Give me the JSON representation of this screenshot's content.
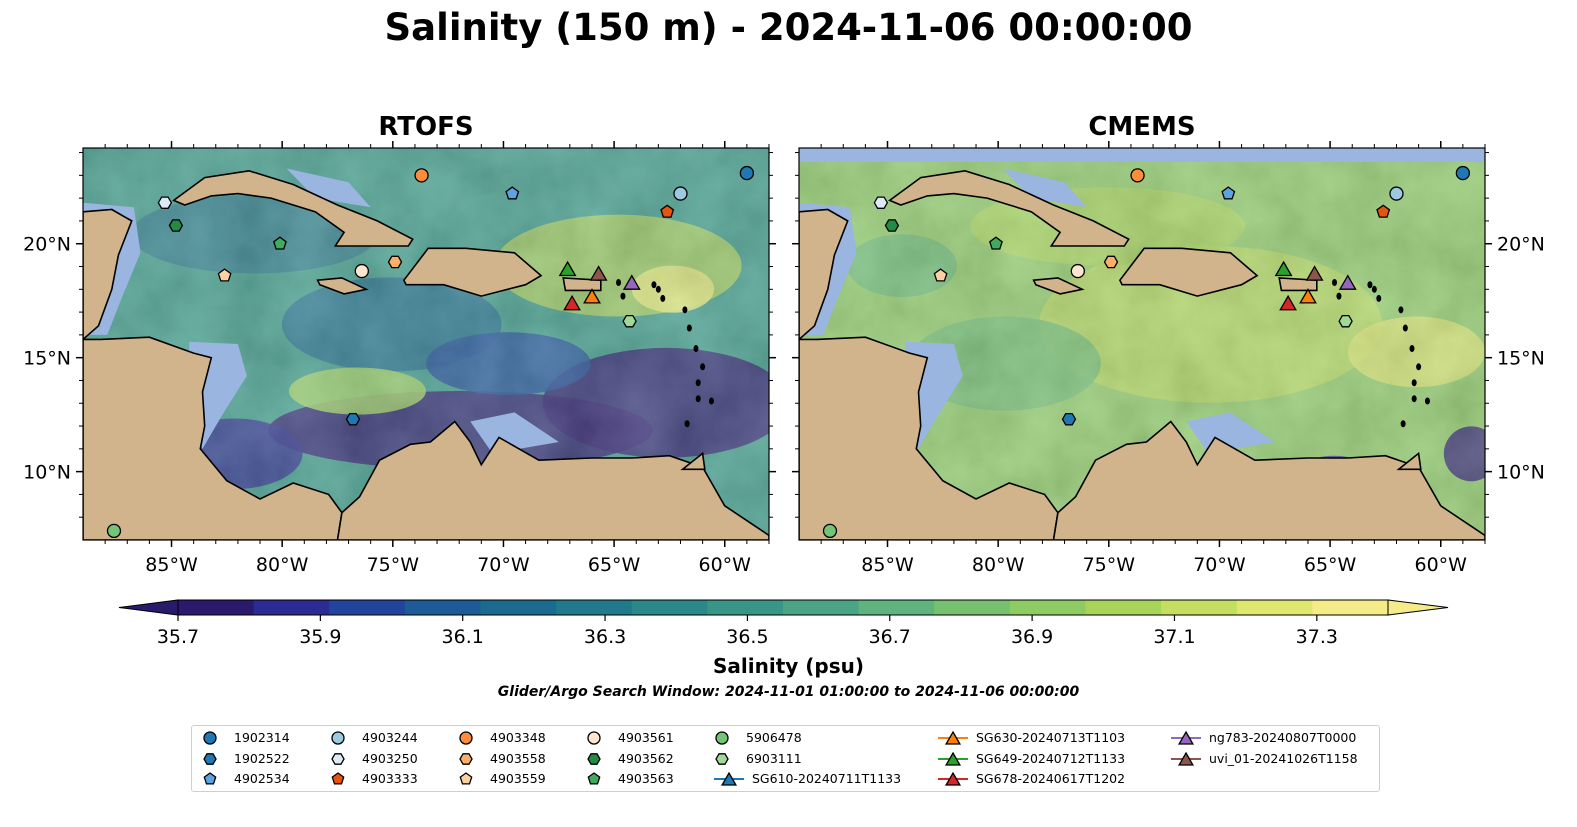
{
  "title": "Salinity (150 m) - 2024-11-06 00:00:00",
  "panels": [
    {
      "title": "RTOFS"
    },
    {
      "title": "CMEMS"
    }
  ],
  "axes": {
    "lon_ticks": [
      "85°W",
      "80°W",
      "75°W",
      "70°W",
      "65°W",
      "60°W"
    ],
    "lat_ticks": [
      "20°N",
      "15°N",
      "10°N"
    ]
  },
  "colorbar": {
    "label": "Salinity (psu)",
    "ticks": [
      "35.7",
      "35.9",
      "36.1",
      "36.3",
      "36.5",
      "36.7",
      "36.9",
      "37.1",
      "37.3"
    ],
    "range": [
      35.7,
      37.4
    ],
    "colors": [
      "#2a1a6b",
      "#2c2a94",
      "#22449e",
      "#1c5a98",
      "#1b6a8f",
      "#1f7a8c",
      "#2a878a",
      "#389688",
      "#4aa585",
      "#5fb47e",
      "#76c16f",
      "#8ecb62",
      "#a7d55a",
      "#c3de62",
      "#dfe76f",
      "#f5eb88"
    ]
  },
  "search_window": "Glider/Argo Search Window: 2024-11-01 01:00:00 to 2024-11-06 00:00:00",
  "legend": {
    "columns": [
      [
        {
          "label": "1902314",
          "marker": "circle",
          "color": "#1f77b4"
        },
        {
          "label": "1902522",
          "marker": "hexagon",
          "color": "#1f77b4"
        },
        {
          "label": "4902534",
          "marker": "pentagon",
          "color": "#5da3e0"
        }
      ],
      [
        {
          "label": "4903244",
          "marker": "circle",
          "color": "#9ecae1"
        },
        {
          "label": "4903250",
          "marker": "hexagon",
          "color": "#deebf7"
        },
        {
          "label": "4903333",
          "marker": "pentagon",
          "color": "#e6550d"
        }
      ],
      [
        {
          "label": "4903348",
          "marker": "circle",
          "color": "#fd8d3c"
        },
        {
          "label": "4903558",
          "marker": "hexagon",
          "color": "#fdae6b"
        },
        {
          "label": "4903559",
          "marker": "pentagon",
          "color": "#fdd0a2"
        }
      ],
      [
        {
          "label": "4903561",
          "marker": "circle",
          "color": "#fde5cf"
        },
        {
          "label": "4903562",
          "marker": "hexagon",
          "color": "#238b45"
        },
        {
          "label": "4903563",
          "marker": "pentagon",
          "color": "#41ab5d"
        }
      ],
      [
        {
          "label": "5906478",
          "marker": "circle",
          "color": "#74c476"
        },
        {
          "label": "6903111",
          "marker": "hexagon",
          "color": "#a1d99b"
        },
        {
          "label": "SG610-20240711T1133",
          "marker": "triangle",
          "color": "#1f77b4"
        }
      ],
      [
        {
          "label": "SG630-20240713T1103",
          "marker": "triangle",
          "color": "#ff7f0e"
        },
        {
          "label": "SG649-20240712T1133",
          "marker": "triangle",
          "color": "#2ca02c"
        },
        {
          "label": "SG678-20240617T1202",
          "marker": "triangle",
          "color": "#d62728"
        }
      ],
      [
        {
          "label": "ng783-20240807T0000",
          "marker": "triangle",
          "color": "#9467bd"
        },
        {
          "label": "uvi_01-20241026T1158",
          "marker": "triangle",
          "color": "#8c564b"
        }
      ]
    ]
  },
  "map_colors": {
    "land": "#d2b48c",
    "shelf": "#9ab5e0",
    "coast": "#000000"
  },
  "markers": [
    {
      "id": "1902314",
      "lon": -59.0,
      "lat": 23.1,
      "marker": "circle",
      "color": "#1f77b4"
    },
    {
      "id": "1902522",
      "lon": -76.8,
      "lat": 12.3,
      "marker": "hexagon",
      "color": "#1f77b4"
    },
    {
      "id": "4902534",
      "lon": -69.6,
      "lat": 22.2,
      "marker": "pentagon",
      "color": "#5da3e0"
    },
    {
      "id": "4903244",
      "lon": -62.0,
      "lat": 22.2,
      "marker": "circle",
      "color": "#9ecae1"
    },
    {
      "id": "4903250",
      "lon": -85.3,
      "lat": 21.8,
      "marker": "hexagon",
      "color": "#deebf7"
    },
    {
      "id": "4903333",
      "lon": -62.6,
      "lat": 21.4,
      "marker": "pentagon",
      "color": "#e6550d"
    },
    {
      "id": "4903348",
      "lon": -73.7,
      "lat": 23.0,
      "marker": "circle",
      "color": "#fd8d3c"
    },
    {
      "id": "4903558",
      "lon": -74.9,
      "lat": 19.2,
      "marker": "hexagon",
      "color": "#fdae6b"
    },
    {
      "id": "4903559",
      "lon": -82.6,
      "lat": 18.6,
      "marker": "pentagon",
      "color": "#fdd0a2"
    },
    {
      "id": "4903561",
      "lon": -76.4,
      "lat": 18.8,
      "marker": "circle",
      "color": "#fde5cf"
    },
    {
      "id": "4903562",
      "lon": -84.8,
      "lat": 20.8,
      "marker": "hexagon",
      "color": "#238b45"
    },
    {
      "id": "4903563",
      "lon": -80.1,
      "lat": 20.0,
      "marker": "pentagon",
      "color": "#41ab5d"
    },
    {
      "id": "5906478",
      "lon": -87.6,
      "lat": 7.4,
      "marker": "circle",
      "color": "#74c476"
    },
    {
      "id": "6903111",
      "lon": -64.3,
      "lat": 16.6,
      "marker": "hexagon",
      "color": "#a1d99b"
    },
    {
      "id": "SG630-20240713T1103",
      "lon": -66.0,
      "lat": 17.7,
      "marker": "triangle",
      "color": "#ff7f0e"
    },
    {
      "id": "SG649-20240712T1133",
      "lon": -67.1,
      "lat": 18.9,
      "marker": "triangle",
      "color": "#2ca02c"
    },
    {
      "id": "SG678-20240617T1202",
      "lon": -66.9,
      "lat": 17.4,
      "marker": "triangle",
      "color": "#d62728"
    },
    {
      "id": "ng783-20240807T0000",
      "lon": -64.2,
      "lat": 18.3,
      "marker": "triangle",
      "color": "#9467bd"
    },
    {
      "id": "uvi_01-20241026T1158",
      "lon": -65.7,
      "lat": 18.7,
      "marker": "triangle",
      "color": "#8c564b"
    }
  ]
}
